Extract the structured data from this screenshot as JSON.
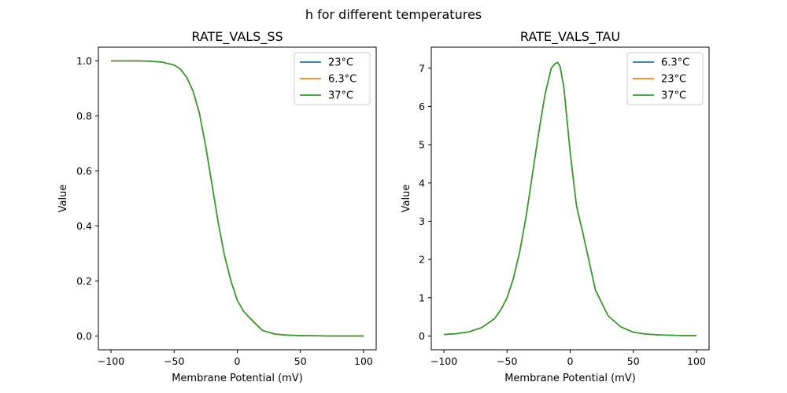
{
  "figure": {
    "suptitle": "h for different temperatures"
  },
  "chart_data": [
    {
      "type": "line",
      "title": "RATE_VALS_SS",
      "xlabel": "Membrane Potential (mV)",
      "ylabel": "Value",
      "xlim": [
        -110,
        110
      ],
      "ylim": [
        -0.05,
        1.05
      ],
      "xticks": [
        -100,
        -50,
        0,
        50,
        100
      ],
      "xtick_labels": [
        "−100",
        "−50",
        "0",
        "50",
        "100"
      ],
      "yticks": [
        0.0,
        0.2,
        0.4,
        0.6,
        0.8,
        1.0
      ],
      "ytick_labels": [
        "0.0",
        "0.2",
        "0.4",
        "0.6",
        "0.8",
        "1.0"
      ],
      "grid": false,
      "legend_position": "top-right",
      "x": [
        -100,
        -90,
        -80,
        -70,
        -60,
        -50,
        -45,
        -40,
        -35,
        -30,
        -25,
        -20,
        -15,
        -10,
        -5,
        0,
        5,
        10,
        20,
        30,
        40,
        50,
        60,
        70,
        80,
        90,
        100
      ],
      "series": [
        {
          "name": "23°C",
          "color": "#1f77b4",
          "values": [
            1.0,
            1.0,
            1.0,
            0.999,
            0.996,
            0.985,
            0.97,
            0.94,
            0.89,
            0.81,
            0.69,
            0.55,
            0.41,
            0.29,
            0.2,
            0.13,
            0.09,
            0.065,
            0.02,
            0.007,
            0.003,
            0.0015,
            0.001,
            0.0005,
            0.0003,
            0.0002,
            0.0001
          ]
        },
        {
          "name": "6.3°C",
          "color": "#ff7f0e",
          "values": [
            1.0,
            1.0,
            1.0,
            0.999,
            0.996,
            0.985,
            0.97,
            0.94,
            0.89,
            0.81,
            0.69,
            0.55,
            0.41,
            0.29,
            0.2,
            0.13,
            0.09,
            0.065,
            0.02,
            0.007,
            0.003,
            0.0015,
            0.001,
            0.0005,
            0.0003,
            0.0002,
            0.0001
          ]
        },
        {
          "name": "37°C",
          "color": "#2ca02c",
          "values": [
            1.0,
            1.0,
            1.0,
            0.999,
            0.996,
            0.985,
            0.97,
            0.94,
            0.89,
            0.81,
            0.69,
            0.55,
            0.41,
            0.29,
            0.2,
            0.13,
            0.09,
            0.065,
            0.02,
            0.007,
            0.003,
            0.0015,
            0.001,
            0.0005,
            0.0003,
            0.0002,
            0.0001
          ]
        }
      ]
    },
    {
      "type": "line",
      "title": "RATE_VALS_TAU",
      "xlabel": "Membrane Potential (mV)",
      "ylabel": "Value",
      "xlim": [
        -110,
        110
      ],
      "ylim": [
        -0.36,
        7.55
      ],
      "xticks": [
        -100,
        -50,
        0,
        50,
        100
      ],
      "xtick_labels": [
        "−100",
        "−50",
        "0",
        "50",
        "100"
      ],
      "yticks": [
        0,
        1,
        2,
        3,
        4,
        5,
        6,
        7
      ],
      "ytick_labels": [
        "0",
        "1",
        "2",
        "3",
        "4",
        "5",
        "6",
        "7"
      ],
      "grid": false,
      "legend_position": "top-right",
      "x": [
        -100,
        -90,
        -80,
        -70,
        -60,
        -55,
        -50,
        -45,
        -40,
        -35,
        -30,
        -25,
        -20,
        -15,
        -12,
        -10,
        -8,
        -5,
        0,
        5,
        10,
        20,
        30,
        40,
        50,
        60,
        70,
        80,
        90,
        100
      ],
      "series": [
        {
          "name": "6.3°C",
          "color": "#1f77b4",
          "values": [
            0.04,
            0.06,
            0.11,
            0.22,
            0.45,
            0.68,
            1.0,
            1.5,
            2.2,
            3.1,
            4.2,
            5.3,
            6.3,
            7.0,
            7.12,
            7.15,
            7.05,
            6.5,
            4.8,
            3.4,
            2.7,
            1.2,
            0.53,
            0.24,
            0.1,
            0.05,
            0.03,
            0.02,
            0.01,
            0.01
          ]
        },
        {
          "name": "23°C",
          "color": "#ff7f0e",
          "values": [
            0.04,
            0.06,
            0.11,
            0.22,
            0.45,
            0.68,
            1.0,
            1.5,
            2.2,
            3.1,
            4.2,
            5.3,
            6.3,
            7.0,
            7.12,
            7.15,
            7.05,
            6.5,
            4.8,
            3.4,
            2.7,
            1.2,
            0.53,
            0.24,
            0.1,
            0.05,
            0.03,
            0.02,
            0.01,
            0.01
          ]
        },
        {
          "name": "37°C",
          "color": "#2ca02c",
          "values": [
            0.04,
            0.06,
            0.11,
            0.22,
            0.45,
            0.68,
            1.0,
            1.5,
            2.2,
            3.1,
            4.2,
            5.3,
            6.3,
            7.0,
            7.12,
            7.15,
            7.05,
            6.5,
            4.8,
            3.4,
            2.7,
            1.2,
            0.53,
            0.24,
            0.1,
            0.05,
            0.03,
            0.02,
            0.01,
            0.01
          ]
        }
      ]
    }
  ]
}
